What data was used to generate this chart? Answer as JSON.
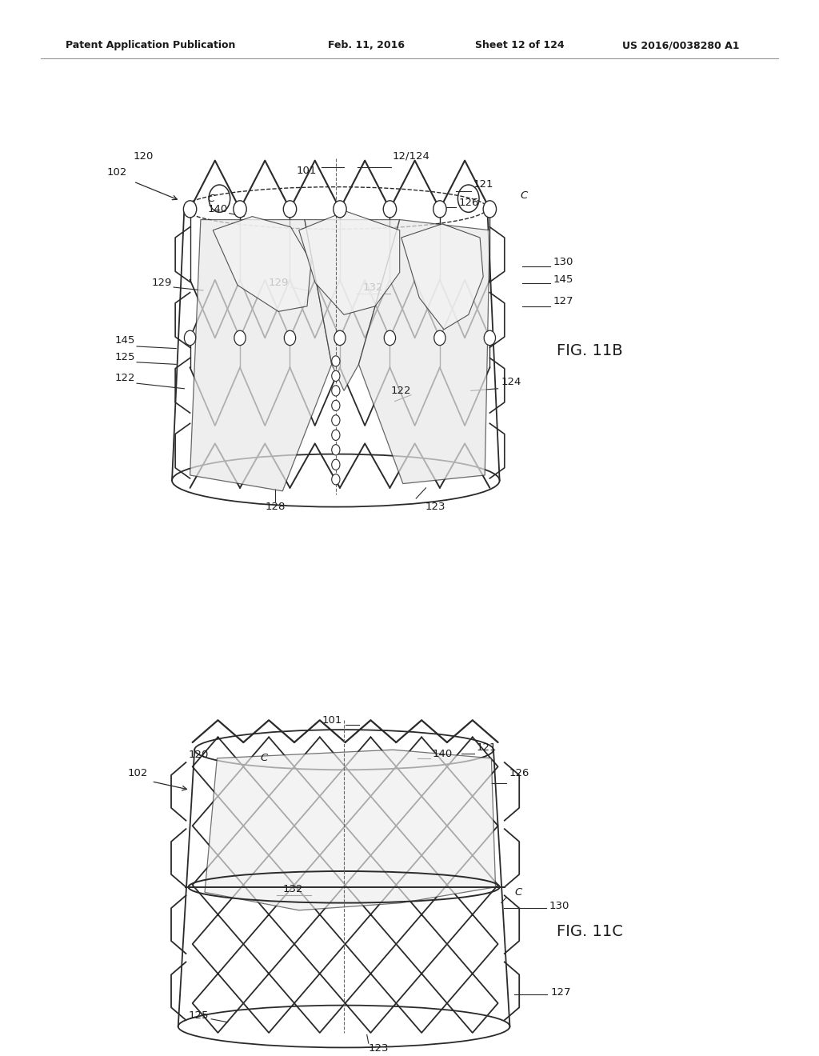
{
  "background_color": "#ffffff",
  "fig_width": 10.24,
  "fig_height": 13.2,
  "header_text": "Patent Application Publication",
  "header_date": "Feb. 11, 2016",
  "header_sheet": "Sheet 12 of 124",
  "header_patent": "US 2016/0038280 A1",
  "text_color": "#1a1a1a",
  "line_color": "#2a2a2a",
  "fig1_label": "FIG. 11B",
  "fig2_label": "FIG. 11C"
}
